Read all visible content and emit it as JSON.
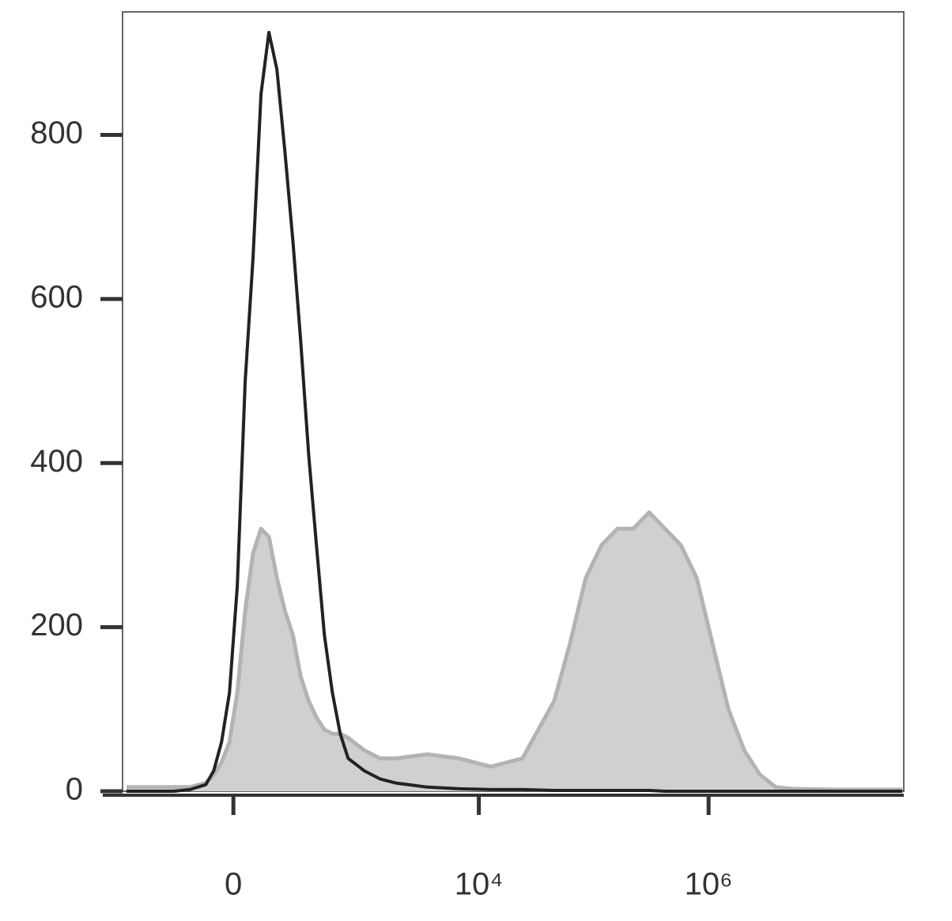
{
  "chart_data": {
    "type": "histogram-overlay",
    "xscale": "biexponential",
    "x": [
      -613,
      -441,
      -314,
      -219,
      -144,
      -85,
      -59,
      -35,
      -11.5,
      11.5,
      35,
      59,
      85,
      113,
      144,
      179,
      219,
      262,
      314,
      372,
      441,
      521,
      613,
      721,
      1000,
      1374,
      1888,
      3565,
      6730,
      12700,
      23950,
      45260,
      62050,
      85260,
      117100,
      160900,
      221000,
      303700,
      417300,
      573200,
      787500,
      1081900,
      1486000,
      2042000,
      2806000,
      3854000,
      5295000,
      11680000,
      48600000
    ],
    "series": [
      {
        "color": "#d0d0d0",
        "stroke": "#b3b3b3",
        "filled": true,
        "values": [
          5,
          5,
          5,
          5,
          5,
          10,
          20,
          35,
          60,
          120,
          220,
          290,
          320,
          310,
          260,
          220,
          190,
          140,
          110,
          90,
          75,
          70,
          70,
          65,
          50,
          40,
          40,
          45,
          40,
          30,
          40,
          110,
          180,
          260,
          300,
          320,
          320,
          340,
          320,
          300,
          260,
          180,
          100,
          50,
          20,
          5,
          3,
          2,
          2
        ]
      },
      {
        "color": "#222222",
        "filled": false,
        "values": [
          0,
          0,
          0,
          0,
          2,
          8,
          25,
          60,
          120,
          250,
          500,
          650,
          850,
          925,
          880,
          780,
          670,
          550,
          410,
          300,
          190,
          120,
          70,
          40,
          25,
          15,
          10,
          5,
          3,
          2,
          2,
          1,
          1,
          1,
          1,
          1,
          1,
          1,
          0,
          0,
          0,
          0,
          0,
          0,
          0,
          0,
          0,
          0,
          0
        ]
      }
    ],
    "xlim": [
      -665,
      50000000
    ],
    "xticks": [
      0,
      {
        "value": 10000,
        "label": "10⁴"
      },
      {
        "value": 1000000,
        "label": "10⁶"
      }
    ],
    "ylim": [
      0,
      950
    ],
    "yticks": [
      0,
      200,
      400,
      600,
      800
    ]
  }
}
